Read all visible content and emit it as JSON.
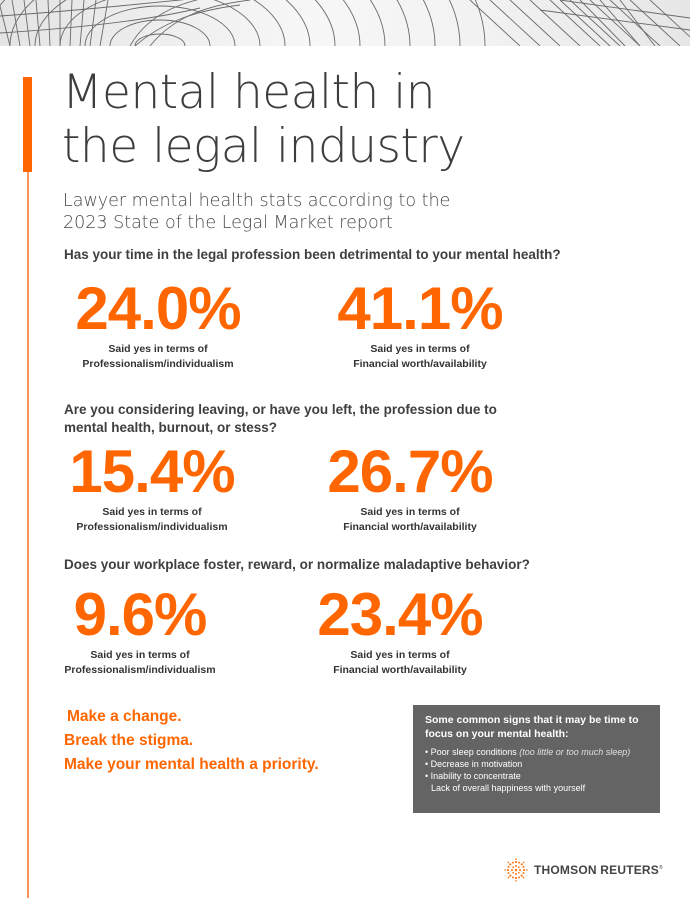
{
  "header": {
    "title_line1": "Mental health in",
    "title_line2": "the legal industry",
    "subtitle_line1": "Lawyer mental health stats according to the",
    "subtitle_line2": "2023 State of the Legal Market report"
  },
  "sections": [
    {
      "question": "Has your time in the legal profession been detrimental to your mental health?",
      "question_line2": "",
      "stats": [
        {
          "value": "24.0%",
          "caption_line1": "Said yes in terms of",
          "caption_line2": "Professionalism/individualism"
        },
        {
          "value": "41.1%",
          "caption_line1": "Said yes in terms of",
          "caption_line2": "Financial worth/availability"
        }
      ]
    },
    {
      "question": "Are you considering leaving, or have you left, the profession due to",
      "question_line2": "mental health, burnout, or stess?",
      "stats": [
        {
          "value": "15.4%",
          "caption_line1": "Said yes in terms of",
          "caption_line2": "Professionalism/individualism"
        },
        {
          "value": "26.7%",
          "caption_line1": "Said yes in terms of",
          "caption_line2": "Financial worth/availability"
        }
      ]
    },
    {
      "question": "Does your workplace foster, reward, or normalize maladaptive behavior?",
      "question_line2": "",
      "stats": [
        {
          "value": "9.6%",
          "caption_line1": "Said yes in terms of",
          "caption_line2": "Professionalism/individualism"
        },
        {
          "value": "23.4%",
          "caption_line1": "Said yes in terms of",
          "caption_line2": "Financial worth/availability"
        }
      ]
    }
  ],
  "call_to_action": {
    "line1": "Make a change.",
    "line2": "Break the stigma.",
    "line3": "Make your mental health a priority."
  },
  "signs_box": {
    "heading_line1": "Some common signs that it may be time to",
    "heading_line2": "focus on your mental health:",
    "items": [
      {
        "bullet": "•",
        "text": "Poor sleep conditions ",
        "note": "(too little or too much sleep)"
      },
      {
        "bullet": "•",
        "text": "Decrease in motivation",
        "note": ""
      },
      {
        "bullet": "•",
        "text": "Inability to concentrate",
        "note": ""
      },
      {
        "bullet": "",
        "text": "Lack of overall happiness with yourself",
        "note": ""
      }
    ]
  },
  "brand": {
    "name": "THOMSON REUTERS",
    "registered": "®",
    "icon": "thomson-reuters-dot-globe-icon"
  },
  "colors": {
    "accent": "#ff6600",
    "accent_light": "#f7955a",
    "text_dark": "#3d3d3d",
    "box_gray": "#646464"
  }
}
